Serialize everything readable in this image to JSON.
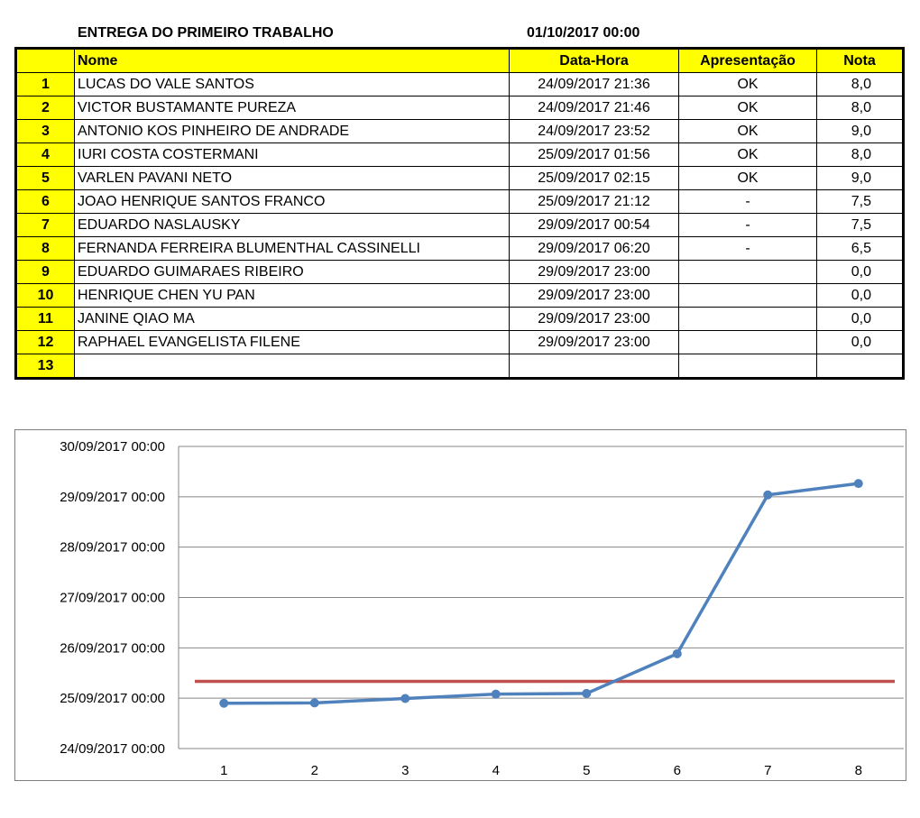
{
  "header": {
    "title": "ENTREGA DO PRIMEIRO TRABALHO",
    "deadline": "01/10/2017 00:00"
  },
  "table": {
    "columns": [
      "Nome",
      "Data-Hora",
      "Apresentação",
      "Nota"
    ],
    "rows": [
      {
        "idx": "1",
        "nome": "LUCAS DO VALE SANTOS",
        "data": "24/09/2017 21:36",
        "ap": "OK",
        "nota": "8,0"
      },
      {
        "idx": "2",
        "nome": "VICTOR BUSTAMANTE PUREZA",
        "data": "24/09/2017 21:46",
        "ap": "OK",
        "nota": "8,0"
      },
      {
        "idx": "3",
        "nome": "ANTONIO KOS PINHEIRO DE ANDRADE",
        "data": "24/09/2017 23:52",
        "ap": "OK",
        "nota": "9,0"
      },
      {
        "idx": "4",
        "nome": "IURI COSTA COSTERMANI",
        "data": "25/09/2017 01:56",
        "ap": "OK",
        "nota": "8,0"
      },
      {
        "idx": "5",
        "nome": "VARLEN PAVANI NETO",
        "data": "25/09/2017 02:15",
        "ap": "OK",
        "nota": "9,0"
      },
      {
        "idx": "6",
        "nome": "JOAO HENRIQUE SANTOS FRANCO",
        "data": "25/09/2017 21:12",
        "ap": "-",
        "nota": "7,5"
      },
      {
        "idx": "7",
        "nome": "EDUARDO NASLAUSKY",
        "data": "29/09/2017 00:54",
        "ap": "-",
        "nota": "7,5"
      },
      {
        "idx": "8",
        "nome": "FERNANDA FERREIRA BLUMENTHAL CASSINELLI",
        "data": "29/09/2017 06:20",
        "ap": "-",
        "nota": "6,5"
      },
      {
        "idx": "9",
        "nome": "EDUARDO GUIMARAES RIBEIRO",
        "data": "29/09/2017 23:00",
        "ap": "",
        "nota": "0,0"
      },
      {
        "idx": "10",
        "nome": "HENRIQUE CHEN YU PAN",
        "data": "29/09/2017 23:00",
        "ap": "",
        "nota": "0,0"
      },
      {
        "idx": "11",
        "nome": "JANINE QIAO MA",
        "data": "29/09/2017 23:00",
        "ap": "",
        "nota": "0,0"
      },
      {
        "idx": "12",
        "nome": "RAPHAEL EVANGELISTA FILENE",
        "data": "29/09/2017 23:00",
        "ap": "",
        "nota": "0,0"
      },
      {
        "idx": "13",
        "nome": "",
        "data": "",
        "ap": "",
        "nota": ""
      }
    ]
  },
  "chart_data": {
    "type": "line",
    "x": [
      1,
      2,
      3,
      4,
      5,
      6,
      7,
      8
    ],
    "series": [
      {
        "values": [
          "24/09/2017 21:36",
          "24/09/2017 21:46",
          "24/09/2017 23:52",
          "25/09/2017 01:56",
          "25/09/2017 02:15",
          "25/09/2017 21:12",
          "29/09/2017 00:54",
          "29/09/2017 06:20"
        ],
        "color": "#4f81bd",
        "markers": true
      },
      {
        "values": [
          "25/09/2017 08:00",
          "25/09/2017 08:00",
          "25/09/2017 08:00",
          "25/09/2017 08:00",
          "25/09/2017 08:00",
          "25/09/2017 08:00",
          "25/09/2017 08:00",
          "25/09/2017 08:00"
        ],
        "color": "#c0504d",
        "markers": false
      }
    ],
    "ylim": [
      "24/09/2017 00:00",
      "30/09/2017 00:00"
    ],
    "yticks": [
      "24/09/2017 00:00",
      "25/09/2017 00:00",
      "26/09/2017 00:00",
      "27/09/2017 00:00",
      "28/09/2017 00:00",
      "29/09/2017 00:00",
      "30/09/2017 00:00"
    ],
    "xticks": [
      "1",
      "2",
      "3",
      "4",
      "5",
      "6",
      "7",
      "8"
    ],
    "grid": "horizontal",
    "title": "",
    "xlabel": "",
    "ylabel": ""
  }
}
